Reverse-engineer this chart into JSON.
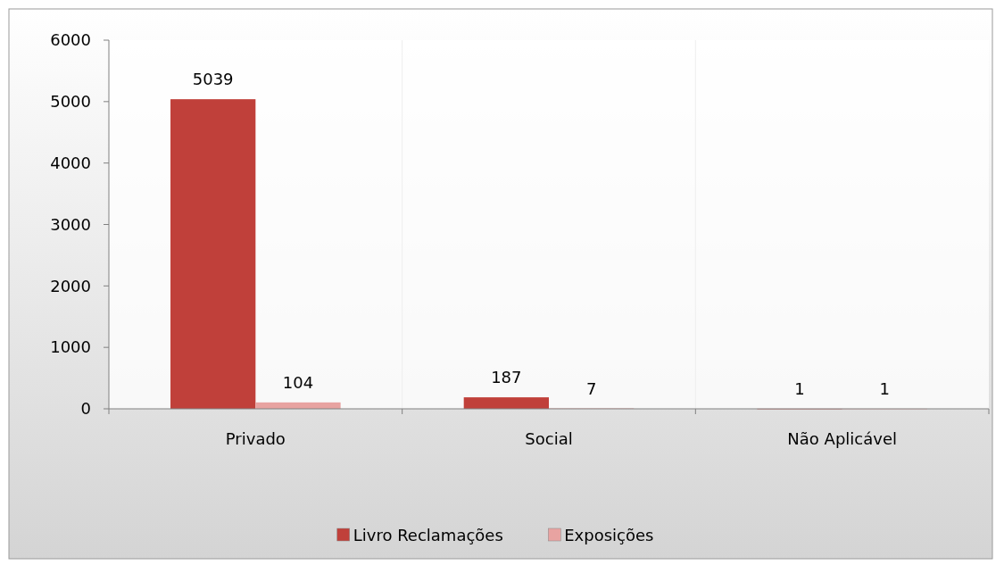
{
  "chart_data": {
    "type": "bar",
    "categories": [
      "Privado",
      "Social",
      "Não Aplicável"
    ],
    "series": [
      {
        "name": "Livro Reclamações",
        "color": "#c0403a",
        "values": [
          5039,
          187,
          1
        ]
      },
      {
        "name": "Exposições",
        "color": "#e8a3a1",
        "values": [
          104,
          7,
          1
        ]
      }
    ],
    "ylim": [
      0,
      6000
    ],
    "yticks": [
      0,
      1000,
      2000,
      3000,
      4000,
      5000,
      6000
    ],
    "data_labels": true,
    "legend": "bottom",
    "grid": false
  }
}
